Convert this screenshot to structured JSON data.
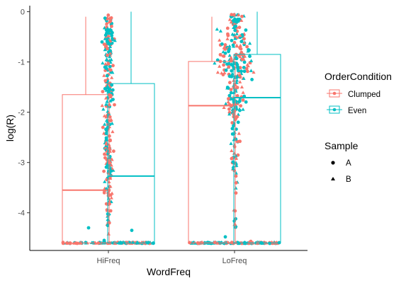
{
  "chart_data": {
    "type": "scatter",
    "subtype": "jittered points over grouped boxplots",
    "xlabel": "WordFreq",
    "ylabel": "log(R)",
    "categories": [
      "HiFreq",
      "LoFreq"
    ],
    "ylim": [
      -4.75,
      0.12
    ],
    "yticks": [
      0,
      -1,
      -2,
      -3,
      -4
    ],
    "grid": false,
    "legend_position": "right",
    "colors": {
      "Clumped": "#F8766D",
      "Even": "#00BFC4"
    },
    "legends": [
      {
        "title": "OrderCondition",
        "entries": [
          "Clumped",
          "Even"
        ]
      },
      {
        "title": "Sample",
        "entries": [
          {
            "label": "A",
            "shape": "circle"
          },
          {
            "label": "B",
            "shape": "triangle"
          }
        ]
      }
    ],
    "boxes": [
      {
        "category": "HiFreq",
        "group": "Clumped",
        "min": -4.6,
        "q1": -4.6,
        "median": -3.55,
        "q3": -1.65,
        "max": -0.1
      },
      {
        "category": "HiFreq",
        "group": "Even",
        "min": -4.6,
        "q1": -4.6,
        "median": -3.27,
        "q3": -1.43,
        "max": 0.0
      },
      {
        "category": "LoFreq",
        "group": "Clumped",
        "min": -4.6,
        "q1": -4.6,
        "median": -1.87,
        "q3": -0.99,
        "max": -0.1
      },
      {
        "category": "LoFreq",
        "group": "Even",
        "min": -4.6,
        "q1": -4.6,
        "median": -1.71,
        "q3": -0.85,
        "max": 0.0
      }
    ],
    "floor_value": -4.6
  }
}
